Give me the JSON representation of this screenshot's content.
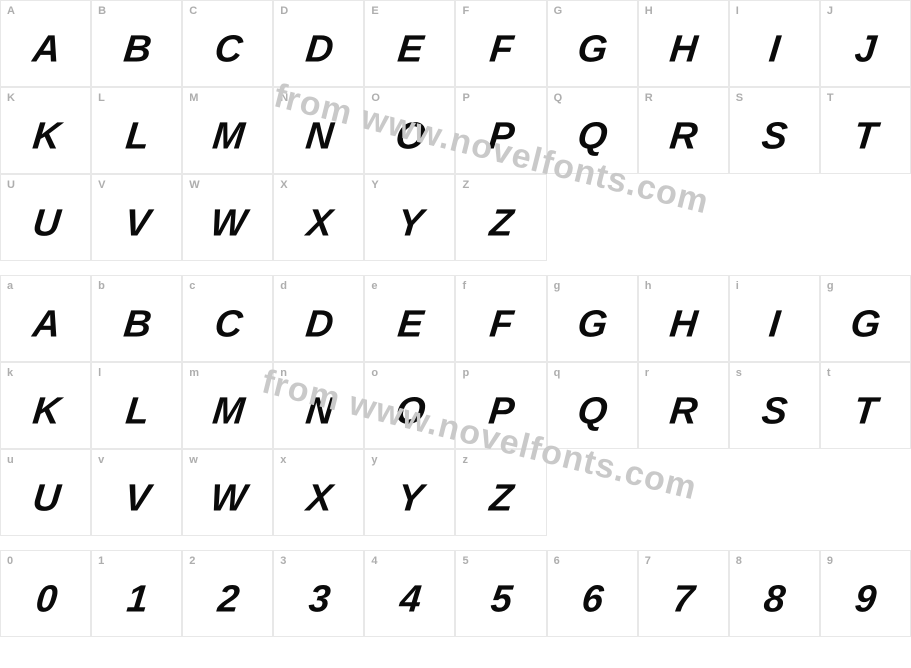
{
  "watermark_text": "from www.novelfonts.com",
  "watermark_color": "#c9c9c9",
  "cell_border_color": "#e8e8e8",
  "label_color": "#aeaeae",
  "glyph_color": "#0a0a0a",
  "background_color": "#ffffff",
  "glyph_fontsize": 38,
  "label_fontsize": 11,
  "rows": [
    {
      "labels": [
        "A",
        "B",
        "C",
        "D",
        "E",
        "F",
        "G",
        "H",
        "I",
        "J"
      ],
      "glyphs": [
        "A",
        "B",
        "C",
        "D",
        "E",
        "F",
        "G",
        "H",
        "I",
        "J"
      ]
    },
    {
      "labels": [
        "K",
        "L",
        "M",
        "N",
        "O",
        "P",
        "Q",
        "R",
        "S",
        "T"
      ],
      "glyphs": [
        "K",
        "L",
        "M",
        "N",
        "O",
        "P",
        "Q",
        "R",
        "S",
        "T"
      ]
    },
    {
      "labels": [
        "U",
        "V",
        "W",
        "X",
        "Y",
        "Z",
        "",
        "",
        "",
        ""
      ],
      "glyphs": [
        "U",
        "V",
        "W",
        "X",
        "Y",
        "Z",
        "",
        "",
        "",
        ""
      ]
    },
    {
      "spacer": true
    },
    {
      "labels": [
        "a",
        "b",
        "c",
        "d",
        "e",
        "f",
        "g",
        "h",
        "i",
        "g"
      ],
      "glyphs": [
        "A",
        "B",
        "C",
        "D",
        "E",
        "F",
        "G",
        "H",
        "I",
        "G"
      ]
    },
    {
      "labels": [
        "k",
        "l",
        "m",
        "n",
        "o",
        "p",
        "q",
        "r",
        "s",
        "t"
      ],
      "glyphs": [
        "K",
        "L",
        "M",
        "N",
        "O",
        "P",
        "Q",
        "R",
        "S",
        "T"
      ]
    },
    {
      "labels": [
        "u",
        "v",
        "w",
        "x",
        "y",
        "z",
        "",
        "",
        "",
        ""
      ],
      "glyphs": [
        "U",
        "V",
        "W",
        "X",
        "Y",
        "Z",
        "",
        "",
        "",
        ""
      ]
    },
    {
      "spacer": true
    },
    {
      "labels": [
        "0",
        "1",
        "2",
        "3",
        "4",
        "5",
        "6",
        "7",
        "8",
        "9"
      ],
      "glyphs": [
        "0",
        "1",
        "2",
        "3",
        "4",
        "5",
        "6",
        "7",
        "8",
        "9"
      ]
    }
  ]
}
